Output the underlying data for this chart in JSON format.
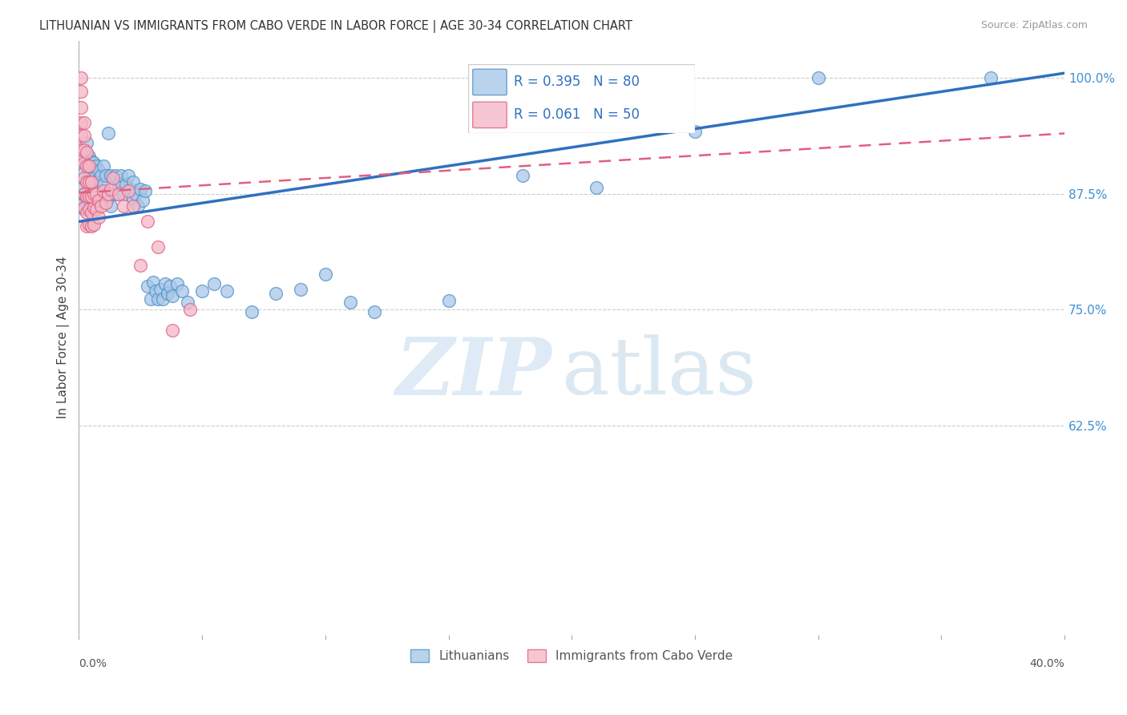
{
  "title": "LITHUANIAN VS IMMIGRANTS FROM CABO VERDE IN LABOR FORCE | AGE 30-34 CORRELATION CHART",
  "source": "Source: ZipAtlas.com",
  "ylabel": "In Labor Force | Age 30-34",
  "xlim": [
    0.0,
    0.4
  ],
  "ylim": [
    0.4,
    1.04
  ],
  "yticks_right": [
    0.625,
    0.75,
    0.875,
    1.0
  ],
  "ytick_labels_right": [
    "62.5%",
    "75.0%",
    "87.5%",
    "100.0%"
  ],
  "R_blue": 0.395,
  "N_blue": 80,
  "R_pink": 0.061,
  "N_pink": 50,
  "blue_color": "#a8c8e8",
  "pink_color": "#f4b8c8",
  "blue_edge_color": "#5090c8",
  "pink_edge_color": "#e06080",
  "blue_line_color": "#3070c0",
  "pink_line_color": "#e06080",
  "legend_label_blue": "Lithuanians",
  "legend_label_pink": "Immigrants from Cabo Verde",
  "blue_scatter_x": [
    0.001,
    0.001,
    0.002,
    0.002,
    0.002,
    0.003,
    0.003,
    0.003,
    0.003,
    0.004,
    0.004,
    0.004,
    0.004,
    0.005,
    0.005,
    0.005,
    0.005,
    0.006,
    0.006,
    0.006,
    0.006,
    0.007,
    0.007,
    0.007,
    0.008,
    0.008,
    0.009,
    0.009,
    0.01,
    0.01,
    0.011,
    0.012,
    0.012,
    0.013,
    0.013,
    0.014,
    0.015,
    0.015,
    0.016,
    0.017,
    0.018,
    0.019,
    0.02,
    0.021,
    0.022,
    0.022,
    0.023,
    0.024,
    0.025,
    0.026,
    0.027,
    0.028,
    0.029,
    0.03,
    0.031,
    0.032,
    0.033,
    0.034,
    0.035,
    0.036,
    0.037,
    0.038,
    0.04,
    0.042,
    0.044,
    0.05,
    0.055,
    0.06,
    0.07,
    0.08,
    0.09,
    0.1,
    0.11,
    0.12,
    0.15,
    0.18,
    0.21,
    0.25,
    0.3,
    0.37
  ],
  "blue_scatter_y": [
    0.88,
    0.863,
    0.898,
    0.875,
    0.858,
    0.93,
    0.91,
    0.888,
    0.87,
    0.915,
    0.895,
    0.875,
    0.858,
    0.91,
    0.892,
    0.875,
    0.858,
    0.908,
    0.892,
    0.875,
    0.858,
    0.905,
    0.888,
    0.87,
    0.9,
    0.878,
    0.895,
    0.875,
    0.905,
    0.885,
    0.895,
    0.94,
    0.87,
    0.895,
    0.862,
    0.88,
    0.895,
    0.875,
    0.885,
    0.895,
    0.875,
    0.885,
    0.895,
    0.88,
    0.87,
    0.888,
    0.875,
    0.862,
    0.88,
    0.868,
    0.878,
    0.775,
    0.762,
    0.78,
    0.77,
    0.762,
    0.772,
    0.762,
    0.778,
    0.768,
    0.775,
    0.765,
    0.778,
    0.77,
    0.758,
    0.77,
    0.778,
    0.77,
    0.748,
    0.768,
    0.772,
    0.788,
    0.758,
    0.748,
    0.76,
    0.895,
    0.882,
    0.942,
    1.0,
    1.0
  ],
  "pink_scatter_x": [
    0.001,
    0.001,
    0.001,
    0.001,
    0.001,
    0.001,
    0.002,
    0.002,
    0.002,
    0.002,
    0.002,
    0.002,
    0.002,
    0.003,
    0.003,
    0.003,
    0.003,
    0.003,
    0.003,
    0.004,
    0.004,
    0.004,
    0.004,
    0.004,
    0.005,
    0.005,
    0.005,
    0.005,
    0.006,
    0.006,
    0.006,
    0.007,
    0.007,
    0.008,
    0.008,
    0.009,
    0.01,
    0.011,
    0.012,
    0.013,
    0.014,
    0.016,
    0.018,
    0.02,
    0.022,
    0.025,
    0.028,
    0.032,
    0.038,
    0.045
  ],
  "pink_scatter_y": [
    1.0,
    0.985,
    0.968,
    0.952,
    0.938,
    0.922,
    0.952,
    0.938,
    0.922,
    0.908,
    0.892,
    0.875,
    0.86,
    0.92,
    0.905,
    0.888,
    0.872,
    0.855,
    0.84,
    0.905,
    0.888,
    0.872,
    0.858,
    0.842,
    0.888,
    0.872,
    0.855,
    0.84,
    0.875,
    0.86,
    0.842,
    0.875,
    0.858,
    0.868,
    0.85,
    0.862,
    0.878,
    0.865,
    0.875,
    0.88,
    0.892,
    0.875,
    0.862,
    0.878,
    0.862,
    0.798,
    0.845,
    0.818,
    0.728,
    0.75
  ],
  "blue_line_x0": 0.0,
  "blue_line_x1": 0.4,
  "blue_line_y0": 0.845,
  "blue_line_y1": 1.005,
  "pink_line_x0": 0.0,
  "pink_line_x1": 0.4,
  "pink_line_y0": 0.876,
  "pink_line_y1": 0.94
}
